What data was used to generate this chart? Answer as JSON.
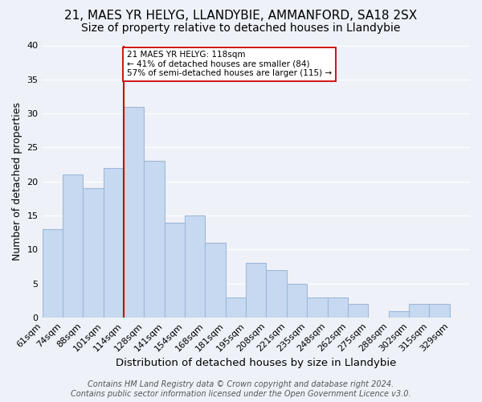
{
  "title1": "21, MAES YR HELYG, LLANDYBIE, AMMANFORD, SA18 2SX",
  "title2": "Size of property relative to detached houses in Llandybie",
  "xlabel": "Distribution of detached houses by size in Llandybie",
  "ylabel": "Number of detached properties",
  "tick_labels": [
    "61sqm",
    "74sqm",
    "88sqm",
    "101sqm",
    "114sqm",
    "128sqm",
    "141sqm",
    "154sqm",
    "168sqm",
    "181sqm",
    "195sqm",
    "208sqm",
    "221sqm",
    "235sqm",
    "248sqm",
    "262sqm",
    "275sqm",
    "288sqm",
    "302sqm",
    "315sqm",
    "329sqm"
  ],
  "values": [
    13,
    21,
    19,
    22,
    31,
    23,
    14,
    15,
    11,
    3,
    8,
    7,
    5,
    3,
    3,
    2,
    0,
    1,
    2,
    2
  ],
  "bar_color": "#c6d9f0",
  "bar_edge_color": "#a0b8d8",
  "ylim": [
    0,
    40
  ],
  "yticks": [
    0,
    5,
    10,
    15,
    20,
    25,
    30,
    35,
    40
  ],
  "vline_position": 4,
  "vline_color": "#cc0000",
  "annotation_line1": "21 MAES YR HELYG: 118sqm",
  "annotation_line2": "← 41% of detached houses are smaller (84)",
  "annotation_line3": "57% of semi-detached houses are larger (115) →",
  "annotation_box_color": "#ffffff",
  "annotation_box_edge_color": "#cc0000",
  "footer1": "Contains HM Land Registry data © Crown copyright and database right 2024.",
  "footer2": "Contains public sector information licensed under the Open Government Licence v3.0.",
  "background_color": "#eef2f8",
  "grid_color": "#ffffff",
  "title1_fontsize": 11,
  "title2_fontsize": 10,
  "xlabel_fontsize": 9.5,
  "ylabel_fontsize": 9,
  "tick_fontsize": 8,
  "footer_fontsize": 7
}
